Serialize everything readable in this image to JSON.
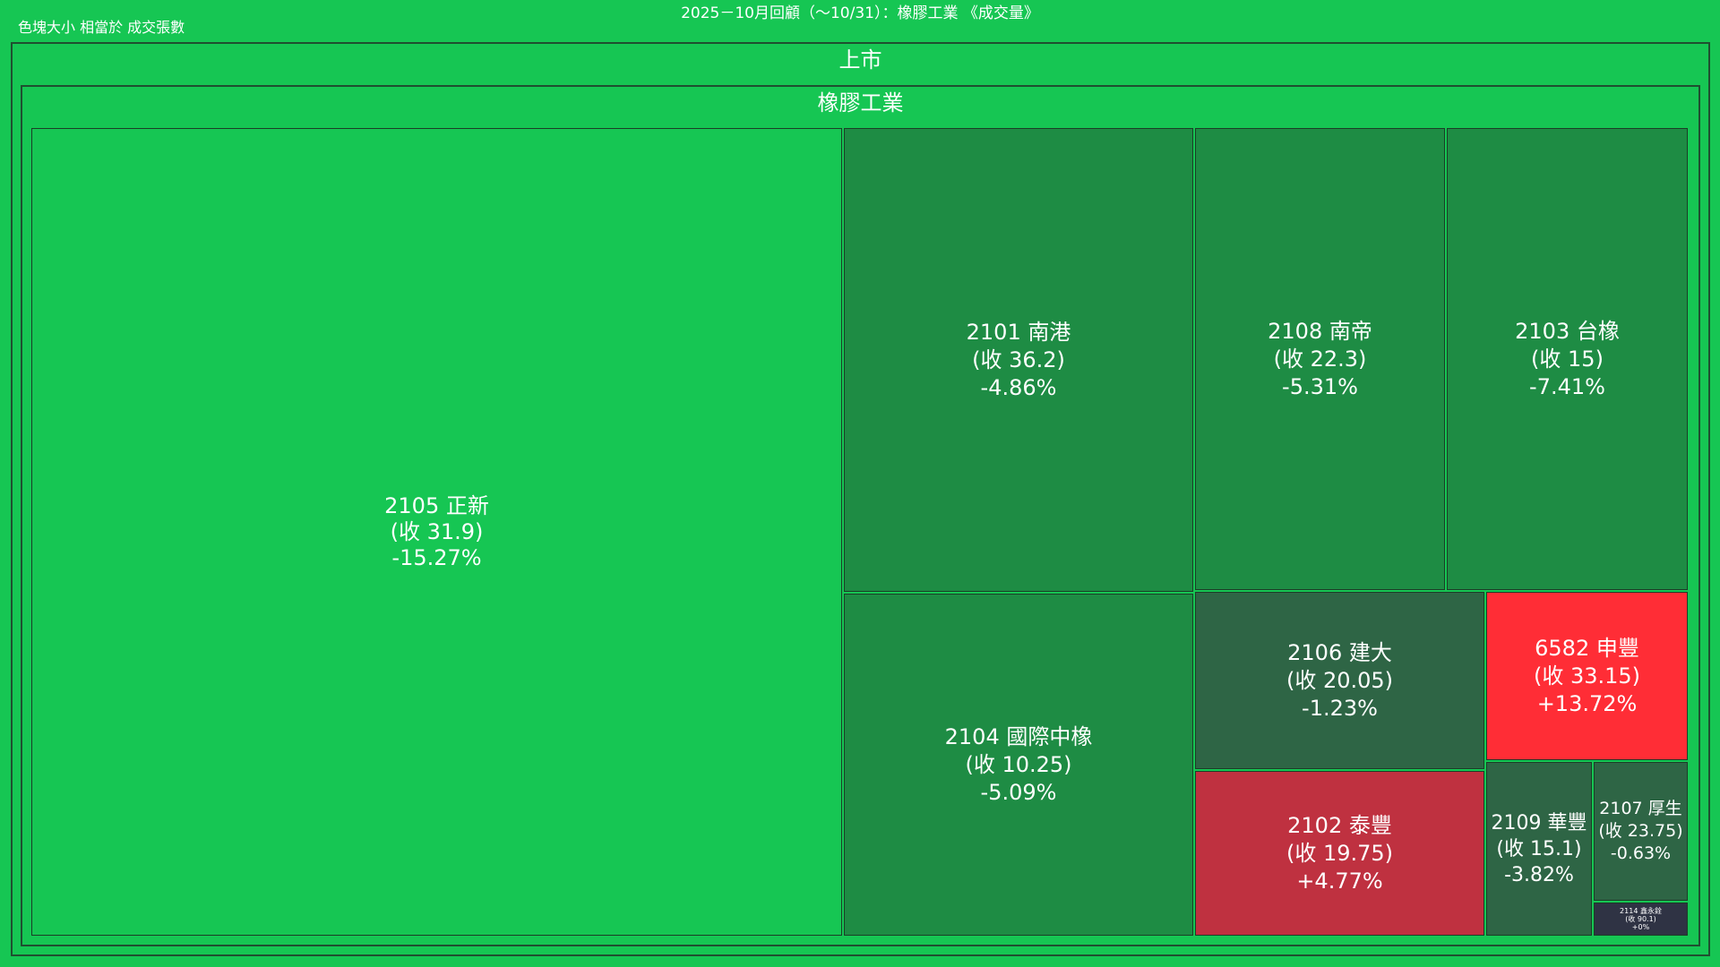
{
  "header": {
    "title": "2025－10月回顧（～10/31）：橡膠工業 《成交量》",
    "size_note": "色塊大小 相當於 成交張數"
  },
  "market": {
    "label": "上市"
  },
  "sector": {
    "label": "橡膠工業"
  },
  "colors": {
    "background": "#16c653",
    "strong_down": "#16c653",
    "down": "#1e8c44",
    "slight_down": "#2e6545",
    "strong_up": "#ff2d36",
    "up": "#bf3140",
    "flat": "#2f3344",
    "border": "#1b3d27"
  },
  "chart_data": {
    "type": "treemap",
    "size_measure": "成交張數",
    "color_measure": "漲跌幅",
    "tiles": [
      {
        "code": "2105",
        "name": "正新",
        "close": "31.9",
        "line1": "2105 正新",
        "line2": "(收 31.9)",
        "line3": "-15.27%",
        "change_pct": -15.27,
        "color": "#16c653"
      },
      {
        "code": "2101",
        "name": "南港",
        "close": "36.2",
        "line1": "2101 南港",
        "line2": "(收 36.2)",
        "line3": "-4.86%",
        "change_pct": -4.86,
        "color": "#1e8c44"
      },
      {
        "code": "2108",
        "name": "南帝",
        "close": "22.3",
        "line1": "2108 南帝",
        "line2": "(收 22.3)",
        "line3": "-5.31%",
        "change_pct": -5.31,
        "color": "#1e8c44"
      },
      {
        "code": "2103",
        "name": "台橡",
        "close": "15",
        "line1": "2103 台橡",
        "line2": "(收 15)",
        "line3": "-7.41%",
        "change_pct": -7.41,
        "color": "#1e8c44"
      },
      {
        "code": "2104",
        "name": "國際中橡",
        "close": "10.25",
        "line1": "2104 國際中橡",
        "line2": "(收 10.25)",
        "line3": "-5.09%",
        "change_pct": -5.09,
        "color": "#1e8c44"
      },
      {
        "code": "2106",
        "name": "建大",
        "close": "20.05",
        "line1": "2106 建大",
        "line2": "(收 20.05)",
        "line3": "-1.23%",
        "change_pct": -1.23,
        "color": "#2e6545"
      },
      {
        "code": "6582",
        "name": "申豐",
        "close": "33.15",
        "line1": "6582 申豐",
        "line2": "(收 33.15)",
        "line3": "+13.72%",
        "change_pct": 13.72,
        "color": "#ff2d36"
      },
      {
        "code": "2102",
        "name": "泰豐",
        "close": "19.75",
        "line1": "2102 泰豐",
        "line2": "(收 19.75)",
        "line3": "+4.77%",
        "change_pct": 4.77,
        "color": "#bf3140"
      },
      {
        "code": "2109",
        "name": "華豐",
        "close": "15.1",
        "line1": "2109 華豐",
        "line2": "(收 15.1)",
        "line3": "-3.82%",
        "change_pct": -3.82,
        "color": "#2e6545"
      },
      {
        "code": "2107",
        "name": "厚生",
        "close": "23.75",
        "line1": "2107 厚生",
        "line2": "(收 23.75)",
        "line3": "-0.63%",
        "change_pct": -0.63,
        "color": "#2e6545"
      },
      {
        "code": "2114",
        "name": "鑫永銓",
        "close": "90.1",
        "line1": "2114 鑫永銓",
        "line2": "(收 90.1)",
        "line3": "+0%",
        "change_pct": 0,
        "color": "#2f3344"
      }
    ]
  }
}
